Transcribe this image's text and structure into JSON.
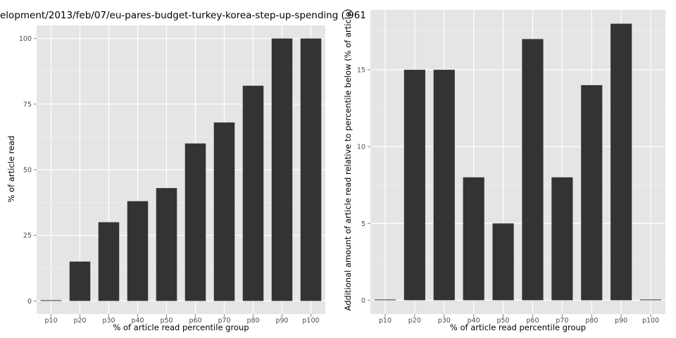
{
  "title": "elopment/2013/feb/07/eu-pares-budget-turkey-korea-step-up-spending ( 961",
  "chart_data": [
    {
      "type": "bar",
      "categories": [
        "p10",
        "p20",
        "p30",
        "p40",
        "p50",
        "p60",
        "p70",
        "p80",
        "p90",
        "p100"
      ],
      "values": [
        0,
        15,
        30,
        38,
        43,
        60,
        68,
        82,
        100,
        100
      ],
      "xlabel": "% of article read percentile group",
      "ylabel": "% of article read",
      "ylim": [
        -5,
        105
      ],
      "yticks": [
        0,
        25,
        50,
        75,
        100
      ],
      "grid": true,
      "colors": {
        "bar": "#333333",
        "panel": "#e5e5e5",
        "grid": "#ffffff",
        "minor_grid": "#f2f2f2"
      }
    },
    {
      "type": "bar",
      "categories": [
        "p10",
        "p20",
        "p30",
        "p40",
        "p50",
        "p60",
        "p70",
        "p80",
        "p90",
        "p100"
      ],
      "values": [
        0,
        15,
        15,
        8,
        5,
        17,
        8,
        14,
        18,
        0
      ],
      "xlabel": "% of article read percentile group",
      "ylabel": "Additional amount of article read relative to percentile below (% of article)",
      "ylim": [
        -0.9,
        18.9
      ],
      "yticks": [
        0,
        5,
        10,
        15
      ],
      "grid": true,
      "colors": {
        "bar": "#333333",
        "panel": "#e5e5e5",
        "grid": "#ffffff",
        "minor_grid": "#f2f2f2"
      }
    }
  ]
}
